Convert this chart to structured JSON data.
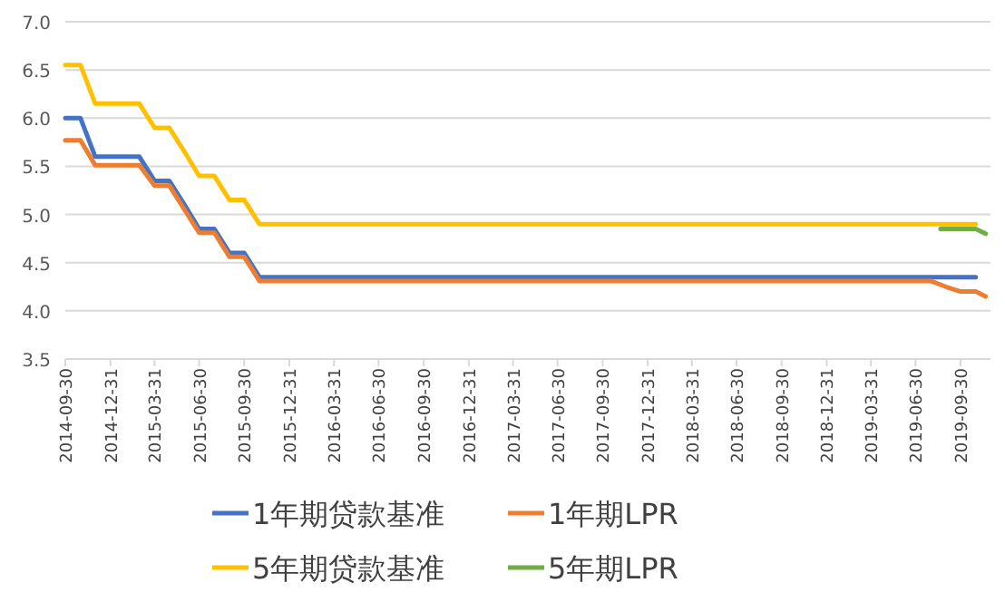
{
  "chart_data": {
    "type": "line",
    "x": [
      "2014-09-30",
      "2014-10-31",
      "2014-11-30",
      "2015-02-28",
      "2015-03-31",
      "2015-04-30",
      "2015-05-31",
      "2015-06-30",
      "2015-07-31",
      "2015-08-31",
      "2015-09-30",
      "2015-10-31",
      "2019-10-31"
    ],
    "series": [
      {
        "name": "1年期贷款基准",
        "color": "#4472c4",
        "values": [
          6.0,
          6.0,
          5.6,
          5.6,
          5.35,
          5.35,
          5.1,
          4.85,
          4.85,
          4.6,
          4.6,
          4.35,
          4.35
        ]
      },
      {
        "name": "1年期LPR",
        "color": "#ed7d31",
        "x": [
          "2014-09-30",
          "2014-10-31",
          "2014-11-30",
          "2015-02-28",
          "2015-03-31",
          "2015-04-30",
          "2015-05-31",
          "2015-06-30",
          "2015-07-31",
          "2015-08-31",
          "2015-09-30",
          "2015-10-31",
          "2019-07-31",
          "2019-08-31",
          "2019-09-30",
          "2019-10-31",
          "2019-11-20"
        ],
        "values": [
          5.77,
          5.77,
          5.51,
          5.51,
          5.3,
          5.3,
          5.05,
          4.81,
          4.81,
          4.56,
          4.56,
          4.31,
          4.31,
          4.25,
          4.2,
          4.2,
          4.15
        ]
      },
      {
        "name": "5年期贷款基准",
        "color": "#ffc000",
        "values": [
          6.55,
          6.55,
          6.15,
          6.15,
          5.9,
          5.9,
          5.65,
          5.4,
          5.4,
          5.15,
          5.15,
          4.9,
          4.9
        ]
      },
      {
        "name": "5年期LPR",
        "color": "#70ad47",
        "x": [
          "2019-08-20",
          "2019-10-31",
          "2019-11-20"
        ],
        "values": [
          4.85,
          4.85,
          4.8
        ]
      }
    ],
    "xlim": [
      "2014-09-30",
      "2019-11-30"
    ],
    "xticks": [
      "2014-09-30",
      "2014-12-31",
      "2015-03-31",
      "2015-06-30",
      "2015-09-30",
      "2015-12-31",
      "2016-03-31",
      "2016-06-30",
      "2016-09-30",
      "2016-12-31",
      "2017-03-31",
      "2017-06-30",
      "2017-09-30",
      "2017-12-31",
      "2018-03-31",
      "2018-06-30",
      "2018-09-30",
      "2018-12-31",
      "2019-03-31",
      "2019-06-30",
      "2019-09-30"
    ],
    "ylim": [
      3.5,
      7.0
    ],
    "yticks": [
      {
        "value": 3.5,
        "label": "3.5"
      },
      {
        "value": 4.0,
        "label": "4.0"
      },
      {
        "value": 4.5,
        "label": "4.5"
      },
      {
        "value": 5.0,
        "label": "5.0"
      },
      {
        "value": 5.5,
        "label": "5.5"
      },
      {
        "value": 6.0,
        "label": "6.0"
      },
      {
        "value": 6.5,
        "label": "6.5"
      },
      {
        "value": 7.0,
        "label": "7.0"
      }
    ],
    "grid": "y",
    "legend": "bottom",
    "marker": "none",
    "line_style": "solid"
  }
}
